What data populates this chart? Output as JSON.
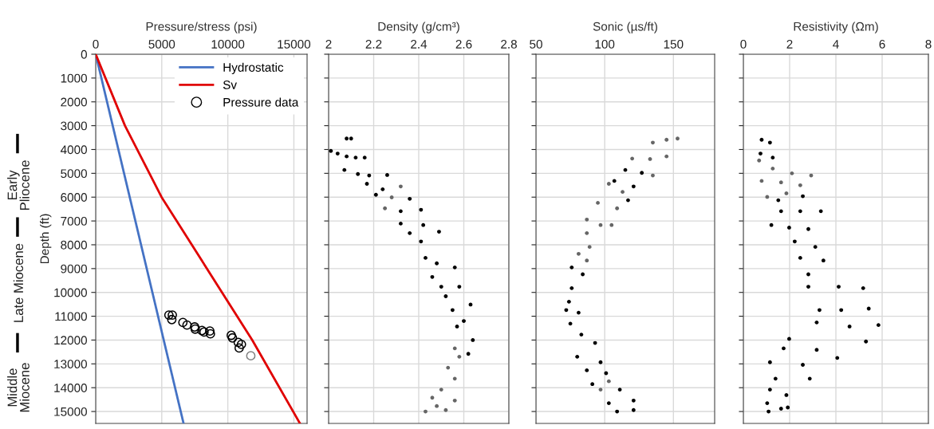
{
  "chart_data": [
    {
      "type": "line",
      "title": "Pressure/stress (psi)",
      "ylabel": "Depth (ft)",
      "xlim": [
        0,
        16000
      ],
      "xticks": [
        0,
        5000,
        10000,
        15000
      ],
      "ylim": [
        15500,
        0
      ],
      "yticks": [
        0,
        1000,
        2000,
        3000,
        4000,
        5000,
        6000,
        7000,
        8000,
        9000,
        10000,
        11000,
        12000,
        13000,
        14000,
        15000
      ],
      "grid": true,
      "legend": "top right",
      "annotations": [
        "Early\nPliocene",
        "Late Miocene",
        "Middle\nMiocene"
      ],
      "series": [
        {
          "name": "Hydrostatic",
          "type": "line",
          "color": "#4472c4",
          "x": [
            0,
            6650
          ],
          "values": [
            0,
            15500
          ]
        },
        {
          "name": "Sv",
          "type": "line",
          "color": "#e00000",
          "x": [
            0,
            2215,
            4985,
            11850,
            15460
          ],
          "values": [
            0,
            3000,
            6000,
            12000,
            15500
          ]
        },
        {
          "name": "Pressure data",
          "type": "scatter",
          "marker": "circle",
          "color": "#000000",
          "colors": [
            "#000000",
            "#000000",
            "#000000",
            "#000000",
            "#000000",
            "#000000",
            "#000000",
            "#000000",
            "#000000",
            "#000000",
            "#000000",
            "#000000",
            "#000000",
            "#000000",
            "#000000",
            "#000000",
            "#808080"
          ],
          "x": [
            5540,
            5800,
            5760,
            6600,
            6910,
            7490,
            7530,
            8040,
            8200,
            8640,
            8680,
            10260,
            10350,
            10790,
            11030,
            10860,
            11740
          ],
          "values": [
            10950,
            10950,
            11140,
            11260,
            11370,
            11450,
            11540,
            11600,
            11660,
            11620,
            11740,
            11800,
            11910,
            12100,
            12180,
            12330,
            12660
          ]
        }
      ]
    },
    {
      "type": "scatter",
      "title": "Density (g/cm³)",
      "xlim": [
        2,
        2.8
      ],
      "xticks": [
        2,
        2.2,
        2.4,
        2.6,
        2.8
      ],
      "ylim": [
        15500,
        0
      ],
      "yticks": [
        0,
        1000,
        2000,
        3000,
        4000,
        5000,
        6000,
        7000,
        8000,
        9000,
        10000,
        11000,
        12000,
        13000,
        14000,
        15000
      ],
      "tick_labels": "x",
      "grid": true,
      "marker": "circle",
      "series": [
        {
          "color": "#000000",
          "x": [
            2.08,
            2.1,
            2.01,
            2.04,
            2.08,
            2.12,
            2.16,
            2.07,
            2.13,
            2.18,
            2.26,
            2.17,
            2.24,
            2.21,
            2.36,
            2.32,
            2.41,
            2.32,
            2.42,
            2.49,
            2.36,
            2.41,
            2.43,
            2.48,
            2.56,
            2.46,
            2.5,
            2.58,
            2.52,
            2.55,
            2.63,
            2.6,
            2.57,
            2.64,
            2.62
          ],
          "values": [
            3540,
            3540,
            4060,
            4170,
            4290,
            4340,
            4340,
            4860,
            5030,
            5090,
            5070,
            5440,
            5670,
            5900,
            6070,
            6590,
            6530,
            7110,
            7170,
            7450,
            7510,
            7860,
            8550,
            8780,
            8950,
            9350,
            9760,
            9760,
            10160,
            10740,
            10510,
            11200,
            11430,
            12000,
            12580
          ]
        },
        {
          "color": "#666666",
          "x": [
            2.32,
            2.28,
            2.25,
            2.56,
            2.58,
            2.53,
            2.56,
            2.5,
            2.46,
            2.56,
            2.43,
            2.52,
            2.48
          ],
          "values": [
            5550,
            6010,
            6470,
            12350,
            12700,
            13160,
            13620,
            14080,
            14420,
            14540,
            15000,
            14940,
            14770
          ]
        }
      ]
    },
    {
      "type": "scatter",
      "title": "Sonic (µs/ft)",
      "xlim": [
        50,
        180
      ],
      "xticks": [
        50,
        100,
        150
      ],
      "ylim": [
        15500,
        0
      ],
      "yticks": [
        0,
        1000,
        2000,
        3000,
        4000,
        5000,
        6000,
        7000,
        8000,
        9000,
        10000,
        11000,
        12000,
        13000,
        14000,
        15000
      ],
      "tick_labels": "x",
      "grid": true,
      "marker": "circle",
      "series": [
        {
          "color": "#666666",
          "x": [
            153,
            145,
            135,
            145,
            120,
            133,
            135,
            103,
            113,
            95,
            109,
            87,
            97,
            105,
            87,
            89,
            81,
            87,
            103,
            97
          ],
          "values": [
            3540,
            3590,
            3710,
            4290,
            4380,
            4400,
            5090,
            5440,
            5780,
            6240,
            6470,
            6940,
            7170,
            7170,
            7510,
            8090,
            8380,
            8660,
            13730,
            14080
          ]
        },
        {
          "color": "#000000",
          "x": [
            115,
            127,
            107,
            121,
            117,
            76,
            84,
            76,
            74,
            72,
            81,
            75,
            83,
            93,
            80,
            97,
            87,
            101,
            91,
            111,
            121,
            103,
            121,
            109
          ],
          "values": [
            4860,
            4980,
            5320,
            5550,
            6130,
            8950,
            9240,
            9820,
            10390,
            10740,
            10850,
            11310,
            11770,
            12120,
            12700,
            12930,
            13270,
            13390,
            13850,
            14080,
            14540,
            14650,
            14940,
            15000
          ]
        }
      ]
    },
    {
      "type": "scatter",
      "title": "Resistivity (Ωm)",
      "xlim": [
        0,
        8
      ],
      "xticks": [
        0,
        2,
        4,
        6,
        8
      ],
      "ylim": [
        15500,
        0
      ],
      "yticks": [
        0,
        1000,
        2000,
        3000,
        4000,
        5000,
        6000,
        7000,
        8000,
        9000,
        10000,
        11000,
        12000,
        13000,
        14000,
        15000
      ],
      "tick_labels": "x",
      "grid": true,
      "marker": "circle",
      "series": [
        {
          "color": "#000000",
          "x": [
            0.79,
            1.15,
            0.74,
            1.27,
            1.51,
            2.57,
            1.63,
            2.46,
            3.35,
            1.21,
            1.98,
            2.81,
            2.22,
            3.11,
            2.46,
            3.46,
            2.81,
            2.81,
            4.12,
            5.18,
            3.29,
            4.23,
            5.42,
            3.17,
            4.59,
            5.84,
            5.3,
            1.98,
            1.74,
            3.17,
            4.06,
            1.15,
            2.57,
            1.39,
            2.87,
            1.15,
            1.86,
            1.03,
            1.63,
            1.09,
            1.92
          ],
          "values": [
            3590,
            3710,
            4170,
            4340,
            6130,
            5960,
            6590,
            6590,
            6590,
            7170,
            7280,
            7340,
            7860,
            8090,
            8550,
            8660,
            9240,
            9760,
            9760,
            9820,
            10740,
            10740,
            10680,
            11260,
            11430,
            11370,
            12060,
            11950,
            12350,
            12410,
            12750,
            12930,
            13040,
            13620,
            13620,
            14080,
            14310,
            14650,
            14880,
            15000,
            14830
          ]
        },
        {
          "color": "#666666",
          "x": [
            0.68,
            1.27,
            2.1,
            2.93,
            0.79,
            1.63,
            2.46,
            1.03,
            1.86
          ],
          "values": [
            4460,
            4800,
            5000,
            5090,
            5320,
            5380,
            5500,
            5990,
            5840
          ]
        }
      ]
    }
  ]
}
